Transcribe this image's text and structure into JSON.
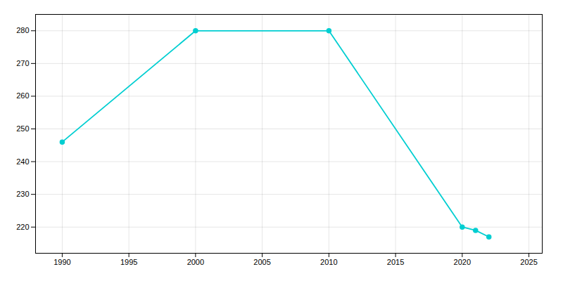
{
  "chart_data": {
    "type": "line",
    "x": [
      1990,
      2000,
      2010,
      2020,
      2021,
      2022
    ],
    "values": [
      246,
      280,
      280,
      220,
      219,
      217
    ],
    "color": "#00CED1",
    "marker": "circle",
    "xlim": [
      1988,
      2026
    ],
    "xticks": [
      1990,
      1995,
      2000,
      2005,
      2010,
      2015,
      2020,
      2025
    ],
    "ylim": [
      212,
      285
    ],
    "yticks": [
      220,
      230,
      240,
      250,
      260,
      270,
      280
    ],
    "grid": true
  }
}
